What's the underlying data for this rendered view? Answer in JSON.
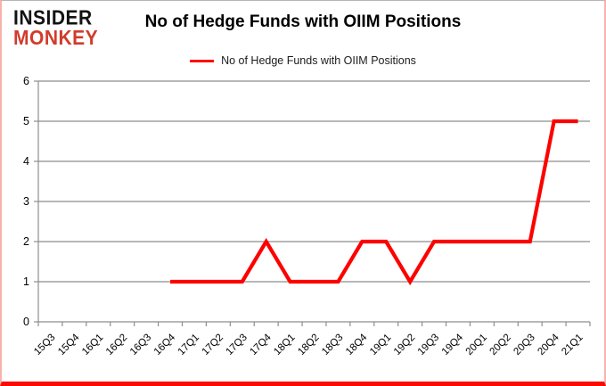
{
  "logo": {
    "line1": "INSIDER",
    "line2": "MONKEY"
  },
  "title": "No of Hedge Funds with OIIM Positions",
  "legend": {
    "label": "No of Hedge Funds with OIIM Positions",
    "swatch_color": "#fe0000"
  },
  "colors": {
    "line": "#fe0000",
    "grid": "#8e8e8e",
    "axis": "#8e8e8e",
    "text": "#000000",
    "border_bottom": "#fb0a02",
    "logo_red": "#d23b2b"
  },
  "chart_data": {
    "type": "line",
    "title": "No of Hedge Funds with OIIM Positions",
    "xlabel": "",
    "ylabel": "",
    "ylim": [
      0,
      6
    ],
    "yticks": [
      0,
      1,
      2,
      3,
      4,
      5,
      6
    ],
    "grid": true,
    "legend_position": "top",
    "categories": [
      "15Q3",
      "15Q4",
      "16Q1",
      "16Q2",
      "16Q3",
      "16Q4",
      "17Q1",
      "17Q2",
      "17Q3",
      "17Q4",
      "18Q1",
      "18Q2",
      "18Q3",
      "18Q4",
      "19Q1",
      "19Q2",
      "19Q3",
      "19Q4",
      "20Q1",
      "20Q2",
      "20Q3",
      "20Q4",
      "21Q1"
    ],
    "series": [
      {
        "name": "No of Hedge Funds with OIIM Positions",
        "color": "#fe0000",
        "values": [
          null,
          null,
          null,
          null,
          null,
          1,
          1,
          1,
          1,
          2,
          1,
          1,
          1,
          2,
          2,
          1,
          2,
          2,
          2,
          2,
          2,
          5,
          5
        ]
      }
    ]
  }
}
